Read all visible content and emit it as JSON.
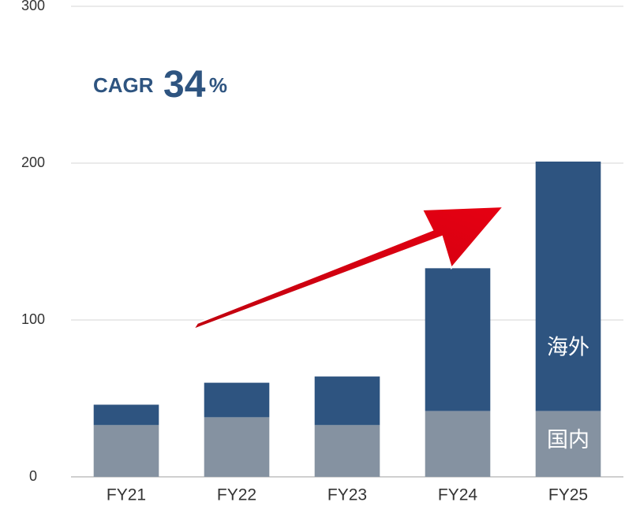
{
  "chart_data": {
    "type": "stacked_bar",
    "categories": [
      "FY21",
      "FY22",
      "FY23",
      "FY24",
      "FY25"
    ],
    "series": [
      {
        "name": "国内",
        "color": "#8592a1",
        "values": [
          33,
          38,
          33,
          42,
          42
        ]
      },
      {
        "name": "海外",
        "color": "#2e5480",
        "values": [
          13,
          22,
          31,
          91,
          159
        ]
      }
    ],
    "ylim": [
      0,
      300
    ],
    "yticks": [
      0,
      100,
      200,
      300
    ],
    "grid": true,
    "annotation": {
      "label": "CAGR",
      "value": 34,
      "unit": "%"
    }
  }
}
